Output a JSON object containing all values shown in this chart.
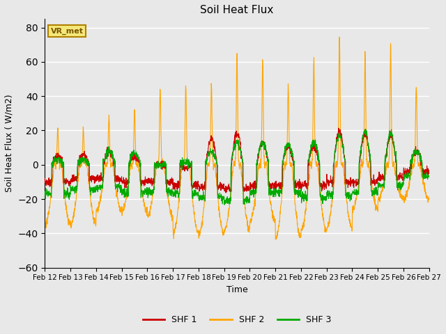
{
  "title": "Soil Heat Flux",
  "xlabel": "Time",
  "ylabel": "Soil Heat Flux ( W/m2)",
  "ylim": [
    -60,
    85
  ],
  "yticks": [
    -60,
    -40,
    -20,
    0,
    20,
    40,
    60,
    80
  ],
  "date_labels": [
    "Feb 12",
    "Feb 13",
    "Feb 14",
    "Feb 15",
    "Feb 16",
    "Feb 17",
    "Feb 18",
    "Feb 19",
    "Feb 20",
    "Feb 21",
    "Feb 22",
    "Feb 23",
    "Feb 24",
    "Feb 25",
    "Feb 26",
    "Feb 27"
  ],
  "color_shf1": "#cc0000",
  "color_shf2": "#ffa500",
  "color_shf3": "#00aa00",
  "plot_bg": "#e8e8e8",
  "fig_bg": "#e8e8e8",
  "vr_label": "VR_met",
  "lw": 0.8,
  "series_labels": [
    "SHF 1",
    "SHF 2",
    "SHF 3"
  ],
  "n_days": 15,
  "pts_per_day": 144,
  "shf2_day_peaks": [
    20,
    20,
    27,
    31,
    44,
    45,
    47,
    65,
    60,
    46,
    61,
    75,
    65,
    69,
    46
  ],
  "shf2_night_troughs": [
    -35,
    -35,
    -27,
    -27,
    -30,
    -40,
    -41,
    -38,
    -33,
    -43,
    -38,
    -37,
    -26,
    -20,
    -20
  ],
  "shf1_day_peaks": [
    5,
    6,
    8,
    5,
    0,
    -2,
    15,
    19,
    13,
    11,
    11,
    20,
    18,
    17,
    8
  ],
  "shf1_night_base": [
    -10,
    -8,
    -8,
    -10,
    -10,
    -12,
    -13,
    -14,
    -12,
    -12,
    -12,
    -10,
    -10,
    -7,
    -4
  ],
  "shf3_day_peaks": [
    3,
    3,
    8,
    7,
    0,
    2,
    8,
    13,
    13,
    12,
    13,
    17,
    19,
    18,
    8
  ],
  "shf3_night_base": [
    -17,
    -14,
    -13,
    -16,
    -16,
    -17,
    -19,
    -21,
    -16,
    -16,
    -19,
    -18,
    -16,
    -12,
    -7
  ]
}
